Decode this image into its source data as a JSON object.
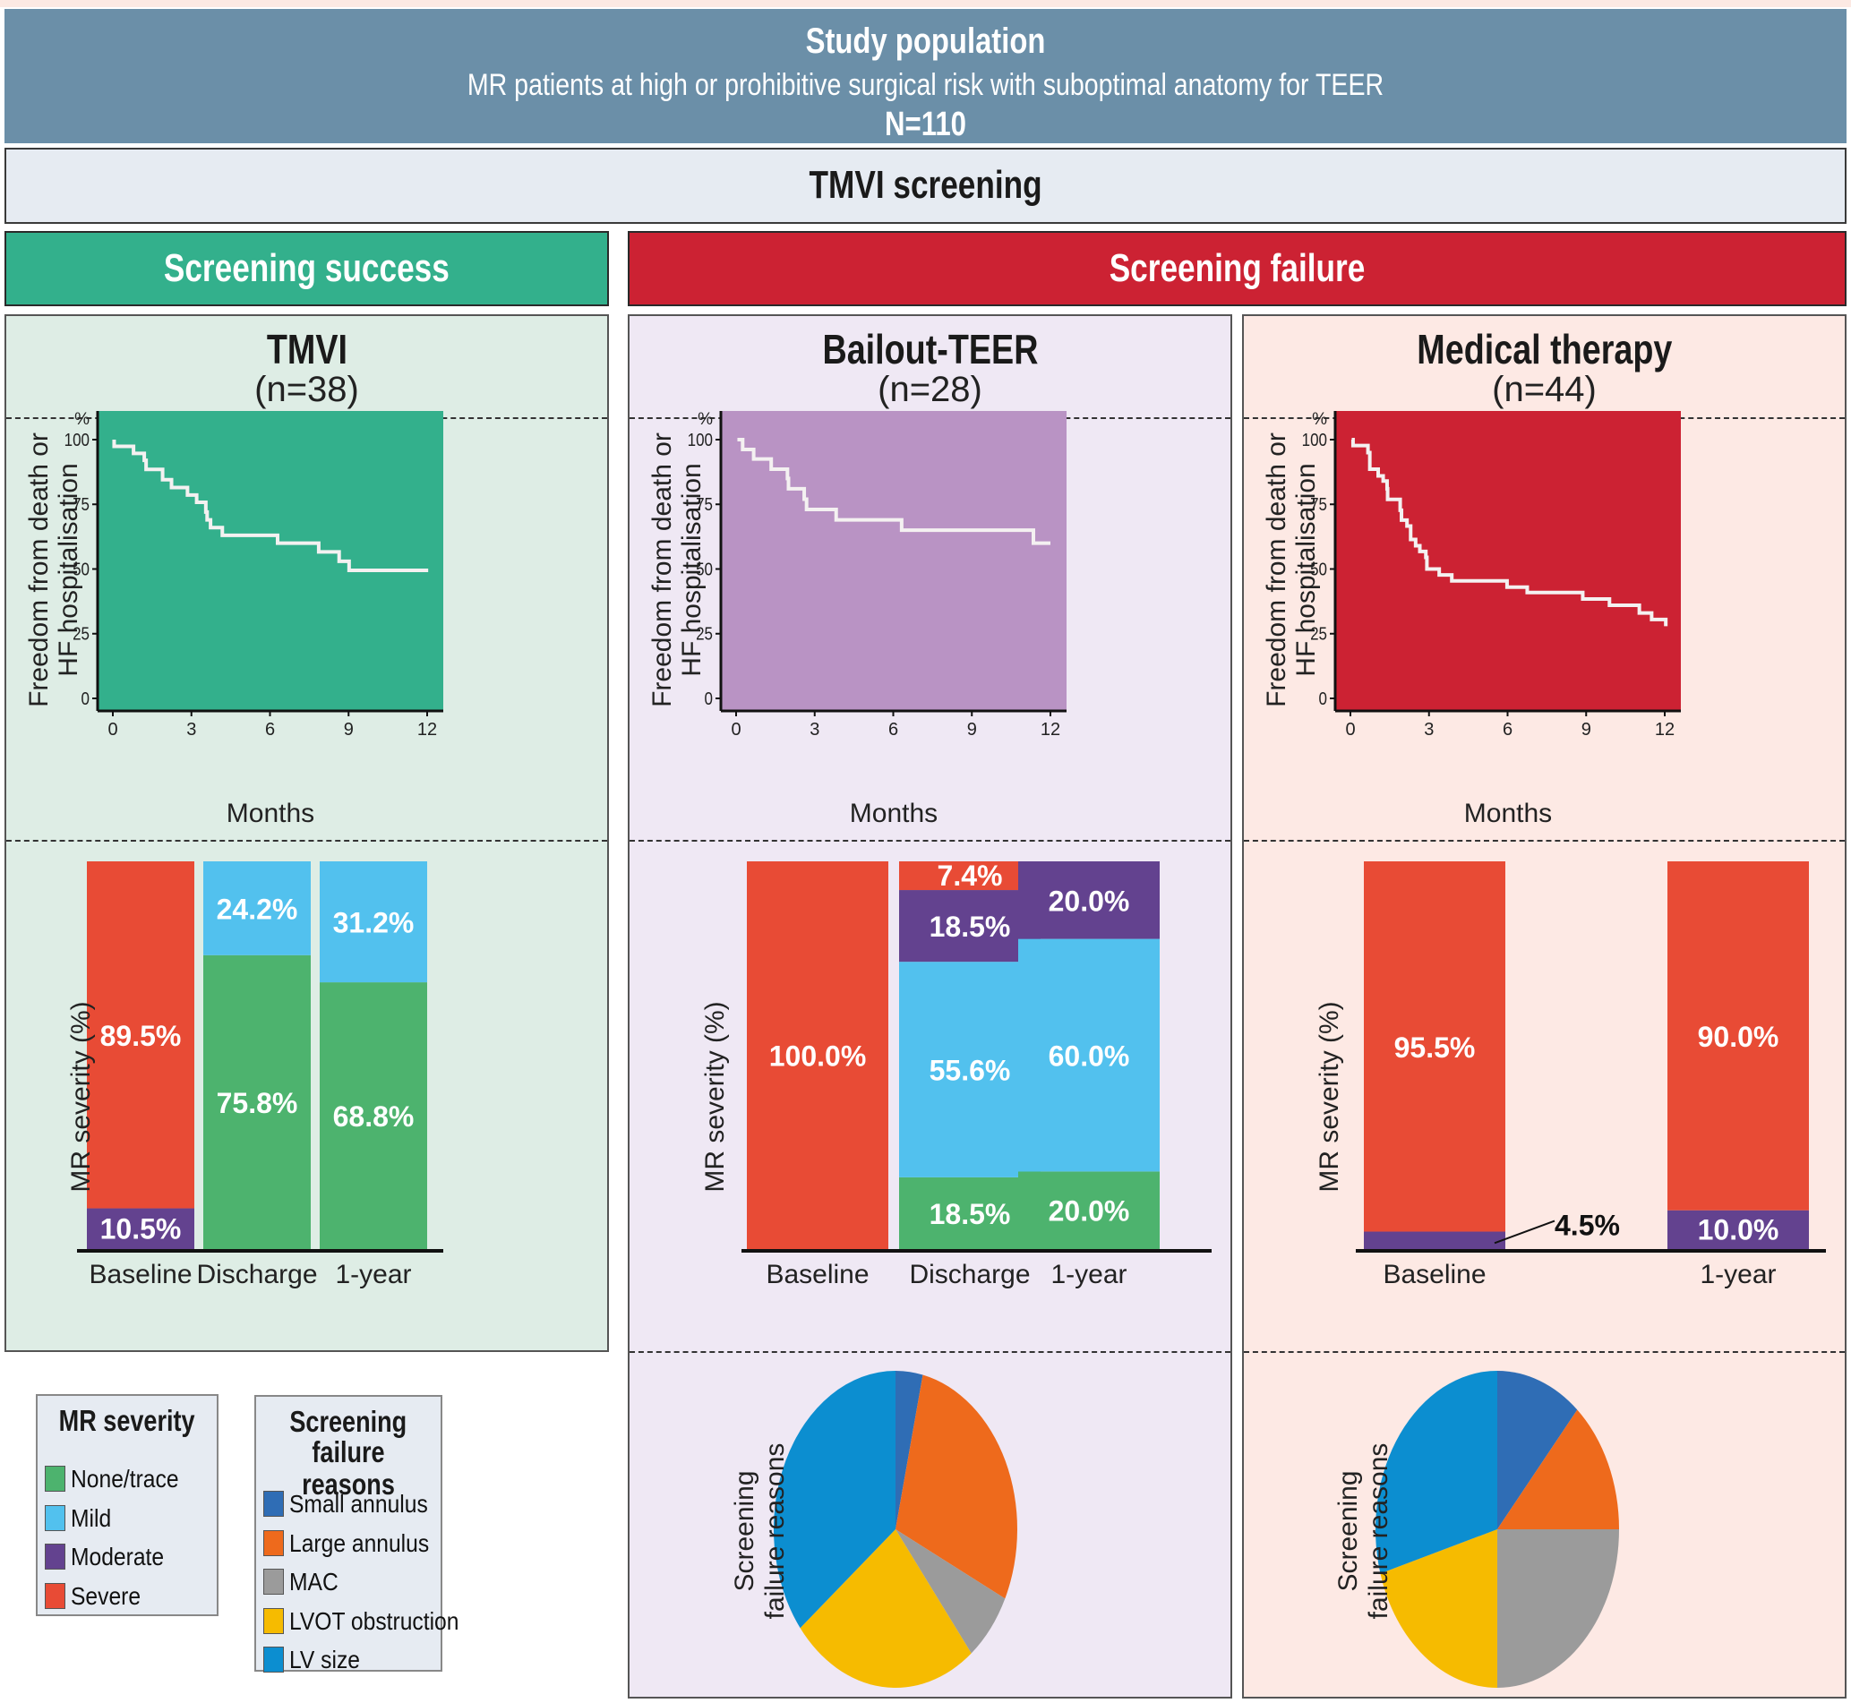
{
  "header": {
    "title": "Study population",
    "subtitle": "MR patients at high or prohibitive surgical risk with suboptimal anatomy for TEER",
    "n": "N=110"
  },
  "screening": {
    "label": "TMVI screening"
  },
  "outcomes": {
    "success": "Screening success",
    "failure": "Screening failure"
  },
  "colors": {
    "header_bg": "#6b8fa8",
    "success": "#33b08c",
    "failure": "#cc2233",
    "none_trace": "#4db36e",
    "mild": "#52c1ee",
    "moderate": "#63428f",
    "severe": "#e84b35",
    "small_annulus": "#2f6db5",
    "large_annulus": "#ee6a1c",
    "mac": "#9b9b9b",
    "lvot": "#f6bb00",
    "lv_size": "#0c8ed0"
  },
  "legends": {
    "mr": {
      "title": "MR severity",
      "items": [
        {
          "label": "None/trace",
          "color": "#4db36e"
        },
        {
          "label": "Mild",
          "color": "#52c1ee"
        },
        {
          "label": "Moderate",
          "color": "#63428f"
        },
        {
          "label": "Severe",
          "color": "#e84b35"
        }
      ]
    },
    "fail": {
      "title_line1": "Screening",
      "title_line2": "failure reasons",
      "items": [
        {
          "label": "Small annulus",
          "color": "#2f6db5"
        },
        {
          "label": "Large annulus",
          "color": "#ee6a1c"
        },
        {
          "label": "MAC",
          "color": "#9b9b9b"
        },
        {
          "label": "LVOT obstruction",
          "color": "#f6bb00"
        },
        {
          "label": "LV size",
          "color": "#0c8ed0"
        }
      ]
    }
  },
  "panels": [
    {
      "title": "TMVI",
      "n": "(n=38)"
    },
    {
      "title": "Bailout-TEER",
      "n": "(n=28)"
    },
    {
      "title": "Medical therapy",
      "n": "(n=44)"
    }
  ],
  "chart_data": [
    {
      "type": "line",
      "subtype": "kaplan-meier",
      "group": "TMVI",
      "ylabel_line1": "Freedom from death or",
      "ylabel_line2": "HF hospitalisation",
      "yunit": "%",
      "xlabel": "Months",
      "xticks": [
        0,
        3,
        6,
        9,
        12
      ],
      "yticks": [
        0,
        25,
        50,
        75,
        100
      ],
      "xlim": [
        -0.6,
        12.6
      ],
      "ylim": [
        -5,
        110
      ],
      "background": "#33b08c",
      "steps": [
        [
          0.05,
          100
        ],
        [
          0.05,
          97.4
        ],
        [
          0.79,
          94.7
        ],
        [
          1.2,
          92
        ],
        [
          1.27,
          88.5
        ],
        [
          1.9,
          84.5
        ],
        [
          2.24,
          81.5
        ],
        [
          2.85,
          78.6
        ],
        [
          3.2,
          75.8
        ],
        [
          3.55,
          72
        ],
        [
          3.6,
          69
        ],
        [
          3.73,
          66
        ],
        [
          4.18,
          63
        ],
        [
          6.29,
          60
        ],
        [
          7.86,
          56.6
        ],
        [
          8.64,
          53
        ],
        [
          9.02,
          49.5
        ],
        [
          12.04,
          49.5
        ]
      ]
    },
    {
      "type": "line",
      "subtype": "kaplan-meier",
      "group": "Bailout-TEER",
      "ylabel_line1": "Freedom from death or",
      "ylabel_line2": "HF hospitalisation",
      "yunit": "%",
      "xlabel": "Months",
      "xticks": [
        0,
        3,
        6,
        9,
        12
      ],
      "yticks": [
        0,
        25,
        50,
        75,
        100
      ],
      "xlim": [
        -0.6,
        12.6
      ],
      "ylim": [
        -5,
        110
      ],
      "background": "#b993c4",
      "steps": [
        [
          0.05,
          100
        ],
        [
          0.25,
          96.2
        ],
        [
          0.67,
          92.5
        ],
        [
          1.34,
          88.6
        ],
        [
          1.96,
          85
        ],
        [
          2.0,
          81
        ],
        [
          2.6,
          77
        ],
        [
          2.69,
          73
        ],
        [
          3.82,
          69
        ],
        [
          6.32,
          65
        ],
        [
          11.35,
          60
        ],
        [
          12.0,
          60
        ]
      ]
    },
    {
      "type": "line",
      "subtype": "kaplan-meier",
      "group": "Medical therapy",
      "ylabel_line1": "Freedom from death or",
      "ylabel_line2": "HF hospitalisation",
      "yunit": "%",
      "xlabel": "Months",
      "xticks": [
        0,
        3,
        6,
        9,
        12
      ],
      "yticks": [
        0,
        25,
        50,
        75,
        100
      ],
      "xlim": [
        -0.6,
        12.6
      ],
      "ylim": [
        -5,
        110
      ],
      "background": "#cc2233",
      "steps": [
        [
          0.05,
          100
        ],
        [
          0.1,
          97.7
        ],
        [
          0.67,
          95
        ],
        [
          0.74,
          88.6
        ],
        [
          1.06,
          86
        ],
        [
          1.25,
          84
        ],
        [
          1.4,
          81
        ],
        [
          1.42,
          76.9
        ],
        [
          1.9,
          72.7
        ],
        [
          1.95,
          68.9
        ],
        [
          2.16,
          66.6
        ],
        [
          2.3,
          61.4
        ],
        [
          2.49,
          59
        ],
        [
          2.65,
          56.8
        ],
        [
          2.88,
          54.5
        ],
        [
          2.92,
          50
        ],
        [
          3.39,
          47.7
        ],
        [
          3.87,
          45.4
        ],
        [
          5.98,
          43
        ],
        [
          6.75,
          40.9
        ],
        [
          8.87,
          38.4
        ],
        [
          9.89,
          36
        ],
        [
          11.03,
          33
        ],
        [
          11.5,
          30.5
        ],
        [
          12.04,
          27.9
        ]
      ]
    },
    {
      "type": "bar",
      "subtype": "stacked-100",
      "group": "TMVI",
      "ylabel": "MR severity (%)",
      "categories": [
        "Baseline",
        "Discharge",
        "1-year"
      ],
      "series": [
        {
          "name": "None/trace",
          "values": [
            0,
            75.8,
            68.8
          ]
        },
        {
          "name": "Mild",
          "values": [
            0,
            24.2,
            31.2
          ]
        },
        {
          "name": "Moderate",
          "values": [
            10.5,
            0,
            0
          ]
        },
        {
          "name": "Severe",
          "values": [
            89.5,
            0,
            0
          ]
        }
      ]
    },
    {
      "type": "bar",
      "subtype": "stacked-100",
      "group": "Bailout-TEER",
      "ylabel": "MR severity (%)",
      "categories": [
        "Baseline",
        "Discharge",
        "1-year"
      ],
      "series": [
        {
          "name": "None/trace",
          "values": [
            0,
            18.5,
            20.0
          ]
        },
        {
          "name": "Mild",
          "values": [
            0,
            55.6,
            60.0
          ]
        },
        {
          "name": "Moderate",
          "values": [
            0,
            18.5,
            20.0
          ]
        },
        {
          "name": "Severe",
          "values": [
            100.0,
            7.4,
            0
          ]
        }
      ]
    },
    {
      "type": "bar",
      "subtype": "stacked-100",
      "group": "Medical therapy",
      "ylabel": "MR severity (%)",
      "categories": [
        "Baseline",
        "",
        "1-year"
      ],
      "series": [
        {
          "name": "None/trace",
          "values": [
            0,
            0,
            0
          ]
        },
        {
          "name": "Mild",
          "values": [
            0,
            0,
            0
          ]
        },
        {
          "name": "Moderate",
          "values": [
            4.5,
            0,
            10.0
          ]
        },
        {
          "name": "Severe",
          "values": [
            95.5,
            0,
            90.0
          ]
        }
      ],
      "callout": "4.5%"
    },
    {
      "type": "pie",
      "group": "Bailout-TEER",
      "ylabel_line1": "Screening",
      "ylabel_line2": "failure reasons",
      "labels": [
        "Small annulus",
        "Large annulus",
        "MAC",
        "LVOT obstruction",
        "LV size"
      ],
      "values": [
        3.6,
        28.6,
        7.1,
        25.0,
        35.7
      ]
    },
    {
      "type": "pie",
      "group": "Medical therapy",
      "ylabel_line1": "Screening",
      "ylabel_line2": "failure reasons",
      "labels": [
        "Small annulus",
        "Large annulus",
        "MAC",
        "LVOT obstruction",
        "LV size"
      ],
      "values": [
        11.4,
        13.6,
        25.0,
        20.5,
        29.5
      ]
    }
  ]
}
